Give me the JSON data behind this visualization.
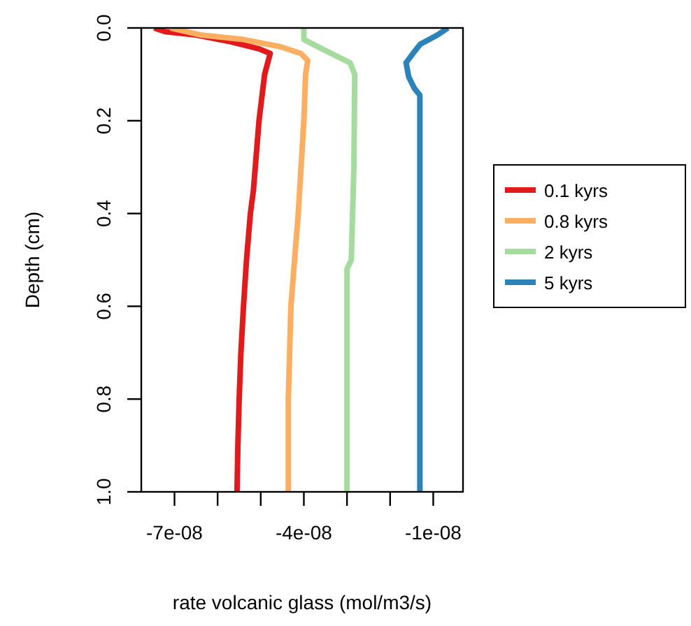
{
  "chart_data": {
    "type": "line",
    "xlabel": "rate volcanic glass (mol/m3/s)",
    "ylabel": "Depth (cm)",
    "xlim": [
      -7.77e-08,
      -3.1e-09
    ],
    "ylim": [
      1.0,
      0.0
    ],
    "xticks": [
      {
        "value": -7e-08,
        "label": "-7e-08"
      },
      {
        "value": -6e-08,
        "label": null
      },
      {
        "value": -5e-08,
        "label": null
      },
      {
        "value": -4e-08,
        "label": "-4e-08"
      },
      {
        "value": -3e-08,
        "label": null
      },
      {
        "value": -2e-08,
        "label": null
      },
      {
        "value": -1e-08,
        "label": "-1e-08"
      }
    ],
    "yticks": [
      {
        "value": 0,
        "label": "0.0"
      },
      {
        "value": 0.2,
        "label": "0.2"
      },
      {
        "value": 0.4,
        "label": "0.4"
      },
      {
        "value": 0.6,
        "label": "0.6"
      },
      {
        "value": 0.8,
        "label": "0.8"
      },
      {
        "value": 1,
        "label": "1.0"
      }
    ],
    "grid": false,
    "legend": "right",
    "line_style": "solid",
    "series": [
      {
        "name": "0.1 kyrs",
        "color": "#e31a1c",
        "x": [
          -7.47e-08,
          -7.22e-08,
          -6.5e-08,
          -5.69e-08,
          -5.04e-08,
          -4.78e-08,
          -4.91e-08,
          -5.04e-08,
          -5.17e-08,
          -5.24e-08,
          -5.33e-08,
          -5.4e-08,
          -5.46e-08,
          -5.5e-08,
          -5.53e-08,
          -5.55e-08
        ],
        "values": [
          0,
          0.008,
          0.015,
          0.03,
          0.045,
          0.055,
          0.1,
          0.2,
          0.35,
          0.4,
          0.5,
          0.6,
          0.7,
          0.8,
          0.9,
          1.0
        ]
      },
      {
        "name": "0.8 kyrs",
        "color": "#fdae61",
        "x": [
          -7.09e-08,
          -6.4e-08,
          -5.4e-08,
          -4.56e-08,
          -4.07e-08,
          -3.91e-08,
          -3.96e-08,
          -4e-08,
          -4.13e-08,
          -4.3e-08,
          -4.36e-08,
          -4.36e-08
        ],
        "values": [
          0,
          0.015,
          0.025,
          0.04,
          0.055,
          0.07,
          0.1,
          0.2,
          0.4,
          0.6,
          0.8,
          1.0
        ]
      },
      {
        "name": "2 kyrs",
        "color": "#a6dba0",
        "x": [
          -4e-08,
          -4e-08,
          -3.58e-08,
          -2.93e-08,
          -2.82e-08,
          -2.84e-08,
          -2.9e-08,
          -3e-08,
          -3e-08
        ],
        "values": [
          0,
          0.025,
          0.045,
          0.075,
          0.1,
          0.3,
          0.5,
          0.52,
          1.0
        ]
      },
      {
        "name": "5 kyrs",
        "color": "#2b83ba",
        "x": [
          -6.6e-09,
          -9e-09,
          -1.3e-08,
          -1.47e-08,
          -1.63e-08,
          -1.57e-08,
          -1.44e-08,
          -1.31e-08,
          -1.31e-08
        ],
        "values": [
          0,
          0.015,
          0.035,
          0.055,
          0.075,
          0.105,
          0.13,
          0.145,
          1.0
        ]
      }
    ]
  }
}
